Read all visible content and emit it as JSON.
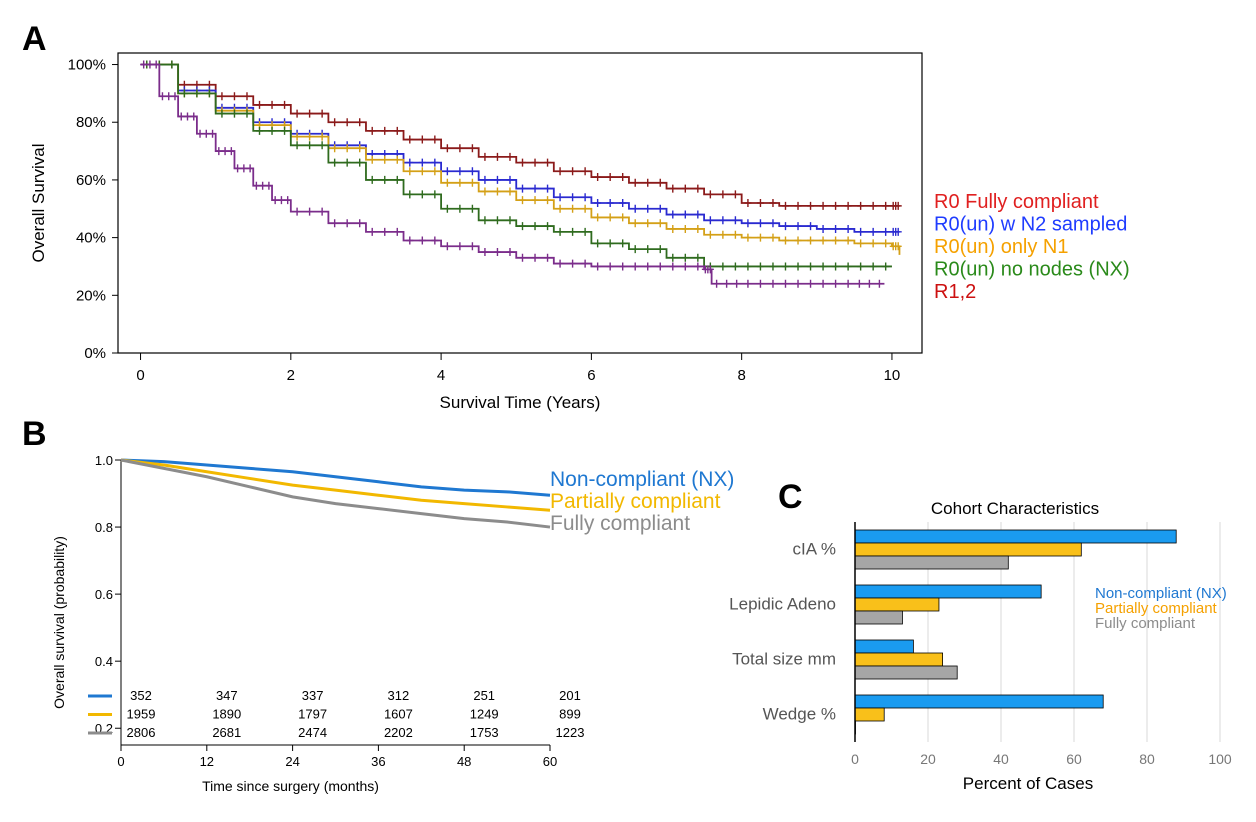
{
  "panels": {
    "a": "A",
    "b": "B",
    "c": "C"
  },
  "chart_data": [
    {
      "type": "line",
      "panel": "A",
      "title": "",
      "xlabel": "Survival Time (Years)",
      "ylabel": "Overall Survival",
      "xlim": [
        -0.3,
        10.4
      ],
      "ylim": [
        0,
        1.04
      ],
      "xticks": [
        0,
        2,
        4,
        6,
        8,
        10
      ],
      "xtick_labels": [
        "0",
        "2",
        "4",
        "6",
        "8",
        "10"
      ],
      "yticks": [
        0,
        0.2,
        0.4,
        0.6,
        0.8,
        1.0
      ],
      "ytick_labels": [
        "0%",
        "20%",
        "40%",
        "60%",
        "80%",
        "100%"
      ],
      "legend_position": "right",
      "series": [
        {
          "name": "R0 Fully compliant",
          "label_color": "#e02020",
          "color": "#8b1a1a",
          "x": [
            0,
            0.5,
            1,
            1.5,
            2,
            2.5,
            3,
            3.5,
            4,
            4.5,
            5,
            5.5,
            6,
            6.5,
            7,
            7.5,
            8,
            8.5,
            9,
            9.5,
            10,
            10.1
          ],
          "y": [
            1.0,
            0.93,
            0.89,
            0.86,
            0.83,
            0.8,
            0.77,
            0.74,
            0.71,
            0.68,
            0.66,
            0.63,
            0.61,
            0.59,
            0.57,
            0.55,
            0.52,
            0.51,
            0.51,
            0.51,
            0.51,
            0.51
          ]
        },
        {
          "name": "R0(un) w N2 sampled",
          "label_color": "#1f3cff",
          "color": "#2a2ad0",
          "x": [
            0,
            0.5,
            1,
            1.5,
            2,
            2.5,
            3,
            3.5,
            4,
            4.5,
            5,
            5.5,
            6,
            6.5,
            7,
            7.5,
            8,
            8.5,
            9,
            9.5,
            10,
            10.1
          ],
          "y": [
            1.0,
            0.91,
            0.85,
            0.8,
            0.76,
            0.72,
            0.69,
            0.66,
            0.63,
            0.6,
            0.57,
            0.54,
            0.52,
            0.5,
            0.48,
            0.46,
            0.45,
            0.44,
            0.43,
            0.42,
            0.42,
            0.42
          ]
        },
        {
          "name": "R0(un) only N1",
          "label_color": "#f5a100",
          "color": "#d4a017",
          "x": [
            0,
            0.5,
            1,
            1.5,
            2,
            2.5,
            3,
            3.5,
            4,
            4.5,
            5,
            5.5,
            6,
            6.5,
            7,
            7.5,
            8,
            8.5,
            9,
            9.5,
            10,
            10.1
          ],
          "y": [
            1.0,
            0.9,
            0.84,
            0.79,
            0.75,
            0.71,
            0.67,
            0.63,
            0.59,
            0.56,
            0.53,
            0.5,
            0.47,
            0.45,
            0.43,
            0.41,
            0.4,
            0.39,
            0.39,
            0.38,
            0.37,
            0.34
          ]
        },
        {
          "name": "R0(un) no nodes (NX)",
          "label_color": "#2a8a1a",
          "color": "#2f6b1e",
          "x": [
            0,
            0.5,
            1,
            1.5,
            2,
            2.5,
            3,
            3.5,
            4,
            4.5,
            5,
            5.5,
            6,
            6.5,
            7,
            7.5,
            8,
            8.5,
            9,
            9.5,
            10
          ],
          "y": [
            1.0,
            0.9,
            0.83,
            0.77,
            0.72,
            0.66,
            0.6,
            0.55,
            0.5,
            0.46,
            0.44,
            0.42,
            0.38,
            0.36,
            0.33,
            0.3,
            0.3,
            0.3,
            0.3,
            0.3,
            0.3
          ]
        },
        {
          "name": "R1,2",
          "label_color": "#cc1010",
          "color": "#7b2d8b",
          "x": [
            0,
            0.25,
            0.5,
            0.75,
            1,
            1.25,
            1.5,
            1.75,
            2,
            2.5,
            3,
            3.5,
            4,
            4.5,
            5,
            5.5,
            6,
            6.5,
            7,
            7.5,
            7.6,
            8,
            8.5,
            9,
            9.5,
            9.9
          ],
          "y": [
            1.0,
            0.89,
            0.82,
            0.76,
            0.7,
            0.64,
            0.58,
            0.53,
            0.49,
            0.45,
            0.42,
            0.39,
            0.37,
            0.35,
            0.33,
            0.31,
            0.3,
            0.3,
            0.3,
            0.29,
            0.24,
            0.24,
            0.24,
            0.24,
            0.24,
            0.24
          ]
        }
      ]
    },
    {
      "type": "line",
      "panel": "B",
      "title": "",
      "xlabel": "Time since surgery (months)",
      "ylabel": "Overall survival (probability)",
      "xlim": [
        0,
        60
      ],
      "ylim": [
        0.15,
        1.0
      ],
      "xticks": [
        0,
        12,
        24,
        36,
        48,
        60
      ],
      "xtick_labels": [
        "0",
        "12",
        "24",
        "36",
        "48",
        "60"
      ],
      "yticks": [
        0.2,
        0.4,
        0.6,
        0.8,
        1.0
      ],
      "ytick_labels": [
        "0.2",
        "0.4",
        "0.6",
        "0.8",
        "1.0"
      ],
      "legend_position": "right",
      "series": [
        {
          "name": "Non-compliant (NX)",
          "color": "#1f78d1",
          "x": [
            0,
            6,
            12,
            18,
            24,
            30,
            36,
            42,
            48,
            54,
            60
          ],
          "y": [
            1.0,
            0.995,
            0.985,
            0.975,
            0.965,
            0.95,
            0.935,
            0.92,
            0.91,
            0.905,
            0.895
          ]
        },
        {
          "name": "Partially compliant",
          "color": "#f2b800",
          "x": [
            0,
            6,
            12,
            18,
            24,
            30,
            36,
            42,
            48,
            54,
            60
          ],
          "y": [
            1.0,
            0.985,
            0.965,
            0.945,
            0.925,
            0.91,
            0.895,
            0.88,
            0.87,
            0.86,
            0.85
          ]
        },
        {
          "name": "Fully compliant",
          "color": "#8c8c8c",
          "x": [
            0,
            6,
            12,
            18,
            24,
            30,
            36,
            42,
            48,
            54,
            60
          ],
          "y": [
            1.0,
            0.975,
            0.95,
            0.92,
            0.89,
            0.87,
            0.855,
            0.84,
            0.825,
            0.815,
            0.8
          ]
        }
      ],
      "risk_table": {
        "times": [
          "0",
          "12",
          "24",
          "36",
          "48",
          "60"
        ],
        "rows": [
          {
            "color": "#1f78d1",
            "values": [
              "352",
              "347",
              "337",
              "312",
              "251",
              "201"
            ]
          },
          {
            "color": "#f2b800",
            "values": [
              "1959",
              "1890",
              "1797",
              "1607",
              "1249",
              "899"
            ]
          },
          {
            "color": "#8c8c8c",
            "values": [
              "2806",
              "2681",
              "2474",
              "2202",
              "1753",
              "1223"
            ]
          }
        ]
      }
    },
    {
      "type": "bar",
      "panel": "C",
      "orientation": "horizontal",
      "title": "Cohort Characteristics",
      "xlabel": "Percent of Cases",
      "ylabel": "",
      "xlim": [
        0,
        100
      ],
      "xticks": [
        0,
        20,
        40,
        60,
        80,
        100
      ],
      "xtick_labels": [
        "0",
        "20",
        "40",
        "60",
        "80",
        "100"
      ],
      "grid": true,
      "legend_position": "right",
      "categories": [
        "cIA %",
        "Lepidic Adeno",
        "Total size mm",
        "Wedge %"
      ],
      "series": [
        {
          "name": "Non-compliant (NX)",
          "color": "#1a9bf0",
          "label_color": "#1f78d1",
          "values": [
            88,
            51,
            16,
            68
          ]
        },
        {
          "name": "Partially compliant",
          "color": "#f9c01a",
          "label_color": "#f5a100",
          "values": [
            62,
            23,
            24,
            8
          ]
        },
        {
          "name": "Fully compliant",
          "color": "#a6a6a6",
          "label_color": "#8c8c8c",
          "values": [
            42,
            13,
            28,
            0
          ]
        }
      ]
    }
  ]
}
